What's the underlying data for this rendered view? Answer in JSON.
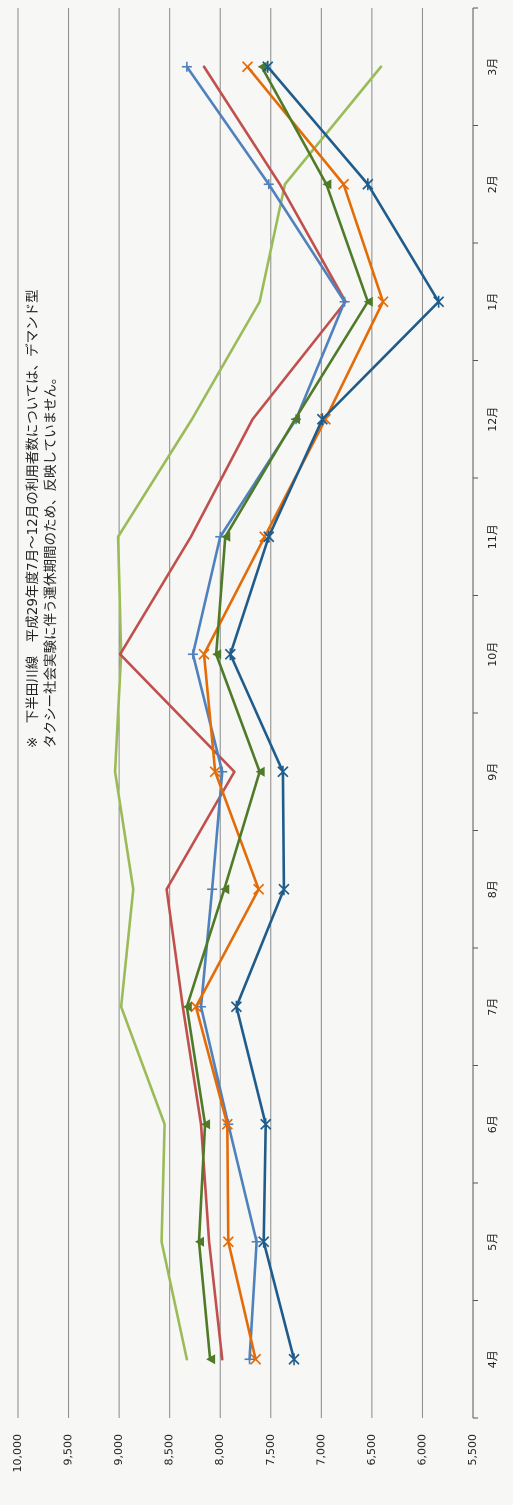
{
  "chart_data": {
    "type": "line",
    "orientation": "rotated-90-clockwise",
    "note_lines": [
      "※　下半田川線　平成29年度7月～12月の利用者数については、デマンド型",
      "タクシー社会実験に伴う運休期間のため、反映していません。"
    ],
    "categories": [
      "4月",
      "5月",
      "6月",
      "7月",
      "8月",
      "9月",
      "10月",
      "11月",
      "12月",
      "1月",
      "2月",
      "3月"
    ],
    "y_tick_labels": [
      "5,500",
      "6,000",
      "6,500",
      "7,000",
      "7,500",
      "8,000",
      "8,500",
      "9,000",
      "9,500",
      "10,000"
    ],
    "ylim": [
      5500,
      10000
    ],
    "ystep": 500,
    "grid": true,
    "series": [
      {
        "color": "#9bbb59",
        "marker": "none",
        "values": [
          8330,
          8580,
          8550,
          8980,
          8860,
          9040,
          8980,
          9010,
          8280,
          7610,
          7360,
          6410
        ]
      },
      {
        "color": "#c0504d",
        "marker": "none",
        "values": [
          7980,
          8110,
          8190,
          8370,
          8530,
          7860,
          8990,
          8290,
          7680,
          6760,
          7410,
          8160
        ]
      },
      {
        "color": "#4f81bd",
        "marker": "plus",
        "values": [
          7710,
          7640,
          7920,
          8190,
          8080,
          7980,
          8270,
          8000,
          7250,
          6770,
          7520,
          8330
        ]
      },
      {
        "color": "#e36c09",
        "marker": "x",
        "values": [
          7650,
          7920,
          7930,
          8240,
          7620,
          8050,
          8160,
          7560,
          6960,
          6390,
          6780,
          7730
        ]
      },
      {
        "color": "#4f7a28",
        "marker": "triangle",
        "values": [
          8100,
          8210,
          8150,
          8330,
          7960,
          7610,
          8040,
          7950,
          7260,
          6540,
          6950,
          7590
        ]
      },
      {
        "color": "#1f5c8b",
        "marker": "star",
        "values": [
          7270,
          7570,
          7550,
          7840,
          7370,
          7380,
          7900,
          7520,
          6990,
          5840,
          6540,
          7530
        ]
      }
    ]
  }
}
